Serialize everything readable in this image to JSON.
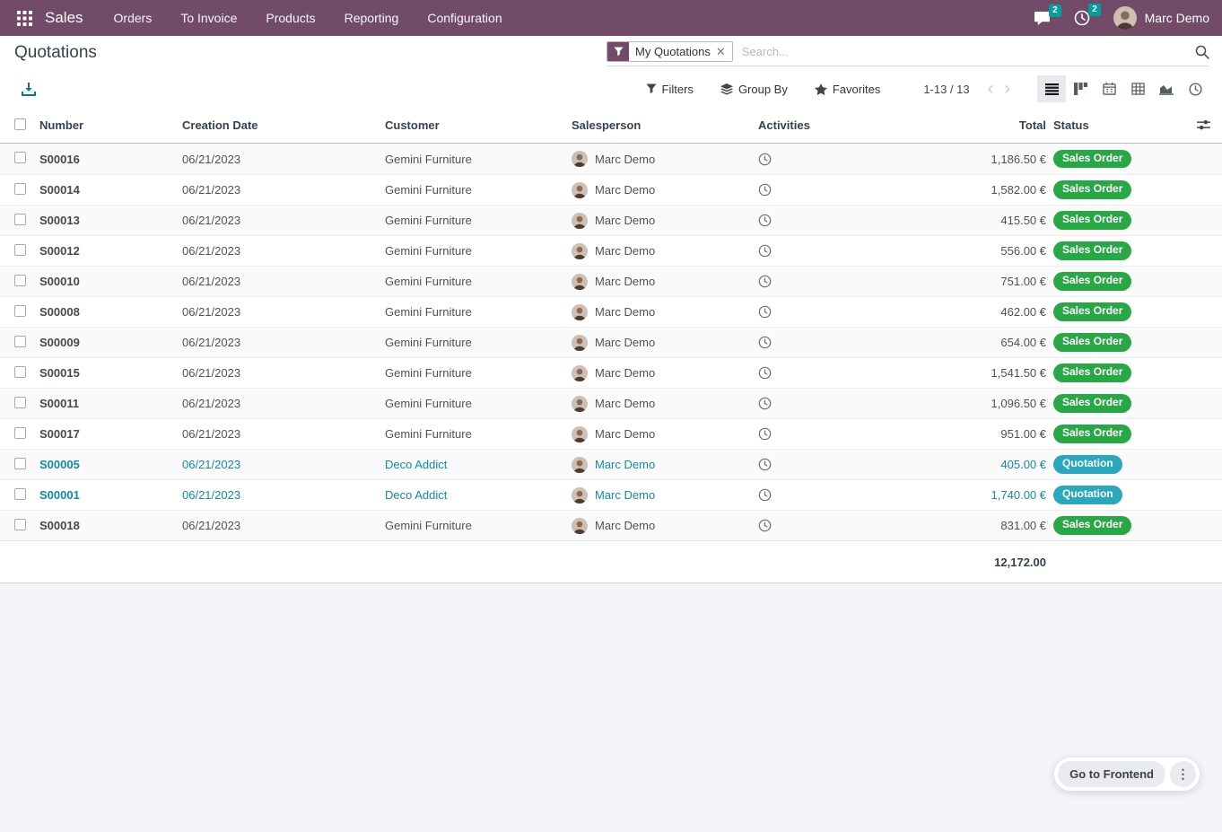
{
  "navbar": {
    "app_name": "Sales",
    "menus": [
      "Orders",
      "To Invoice",
      "Products",
      "Reporting",
      "Configuration"
    ],
    "messages_badge": "2",
    "activities_badge": "2",
    "user_name": "Marc Demo"
  },
  "control_panel": {
    "title": "Quotations",
    "search_facet": "My Quotations",
    "search_placeholder": "Search...",
    "filters_label": "Filters",
    "group_by_label": "Group By",
    "favorites_label": "Favorites",
    "pager_text": "1-13 / 13"
  },
  "table": {
    "headers": {
      "number": "Number",
      "creation_date": "Creation Date",
      "customer": "Customer",
      "salesperson": "Salesperson",
      "activities": "Activities",
      "total": "Total",
      "status": "Status"
    },
    "rows": [
      {
        "number": "S00016",
        "date": "06/21/2023",
        "customer": "Gemini Furniture",
        "salesperson": "Marc Demo",
        "total": "1,186.50 €",
        "status": "Sales Order"
      },
      {
        "number": "S00014",
        "date": "06/21/2023",
        "customer": "Gemini Furniture",
        "salesperson": "Marc Demo",
        "total": "1,582.00 €",
        "status": "Sales Order"
      },
      {
        "number": "S00013",
        "date": "06/21/2023",
        "customer": "Gemini Furniture",
        "salesperson": "Marc Demo",
        "total": "415.50 €",
        "status": "Sales Order"
      },
      {
        "number": "S00012",
        "date": "06/21/2023",
        "customer": "Gemini Furniture",
        "salesperson": "Marc Demo",
        "total": "556.00 €",
        "status": "Sales Order"
      },
      {
        "number": "S00010",
        "date": "06/21/2023",
        "customer": "Gemini Furniture",
        "salesperson": "Marc Demo",
        "total": "751.00 €",
        "status": "Sales Order"
      },
      {
        "number": "S00008",
        "date": "06/21/2023",
        "customer": "Gemini Furniture",
        "salesperson": "Marc Demo",
        "total": "462.00 €",
        "status": "Sales Order"
      },
      {
        "number": "S00009",
        "date": "06/21/2023",
        "customer": "Gemini Furniture",
        "salesperson": "Marc Demo",
        "total": "654.00 €",
        "status": "Sales Order"
      },
      {
        "number": "S00015",
        "date": "06/21/2023",
        "customer": "Gemini Furniture",
        "salesperson": "Marc Demo",
        "total": "1,541.50 €",
        "status": "Sales Order"
      },
      {
        "number": "S00011",
        "date": "06/21/2023",
        "customer": "Gemini Furniture",
        "salesperson": "Marc Demo",
        "total": "1,096.50 €",
        "status": "Sales Order"
      },
      {
        "number": "S00017",
        "date": "06/21/2023",
        "customer": "Gemini Furniture",
        "salesperson": "Marc Demo",
        "total": "951.00 €",
        "status": "Sales Order"
      },
      {
        "number": "S00005",
        "date": "06/21/2023",
        "customer": "Deco Addict",
        "salesperson": "Marc Demo",
        "total": "405.00 €",
        "status": "Quotation"
      },
      {
        "number": "S00001",
        "date": "06/21/2023",
        "customer": "Deco Addict",
        "salesperson": "Marc Demo",
        "total": "1,740.00 €",
        "status": "Quotation"
      },
      {
        "number": "S00018",
        "date": "06/21/2023",
        "customer": "Gemini Furniture",
        "salesperson": "Marc Demo",
        "total": "831.00 €",
        "status": "Sales Order"
      }
    ],
    "footer_total": "12,172.00"
  },
  "frontend_button_label": "Go to Frontend",
  "colors": {
    "navbar_bg": "#714B67",
    "badge_teal": "#00A09D",
    "status_green": "#28a745",
    "status_cyan": "#29a8bd",
    "quotation_text": "#0e8ca8",
    "export_teal": "#017e84"
  }
}
